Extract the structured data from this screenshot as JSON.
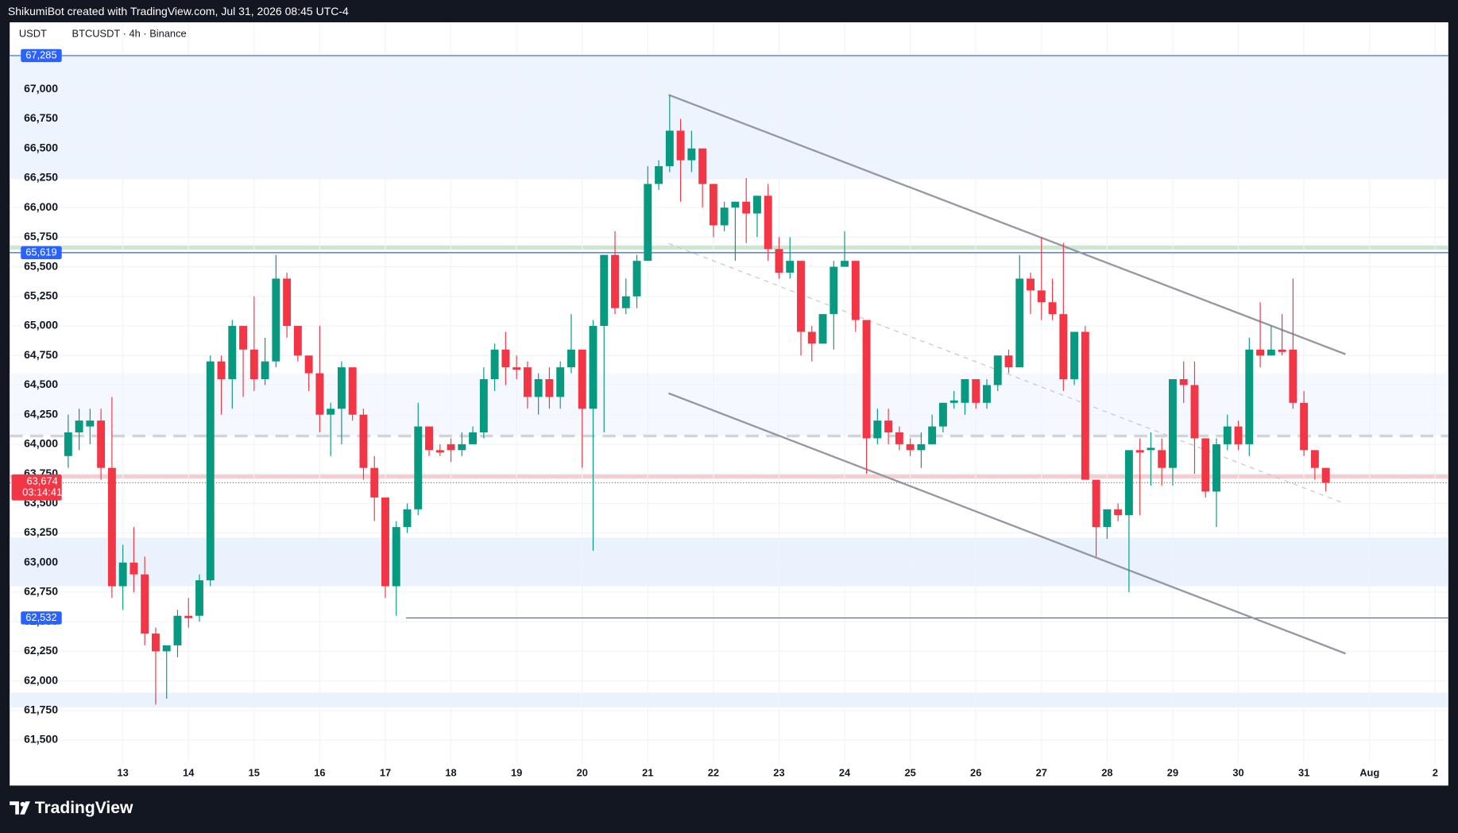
{
  "header": "ShikumiBot created with TradingView.com, Jul 31, 2026 08:45 UTC-4",
  "brand": "TradingView",
  "chart_data": {
    "type": "candlestick",
    "title": "BTCUSDT · 4h · Binance",
    "currency": "USDT",
    "up_color": "#089981",
    "down_color": "#f23645",
    "grid": true,
    "open": [
      63900,
      64100,
      64150,
      64200,
      63800,
      62800,
      63000,
      62900,
      62400,
      62250,
      62300,
      62550,
      62550,
      62850,
      64700,
      64550,
      65000,
      64800,
      64550,
      64700,
      65400,
      65000,
      64750,
      64600,
      64250,
      64300,
      64650,
      64250,
      63800,
      63550,
      62800,
      63300,
      63450,
      64150,
      63950,
      64000,
      63950,
      64000,
      64100,
      64550,
      64800,
      64650,
      64650,
      64400,
      64550,
      64400,
      64650,
      64800,
      64300,
      65000,
      65600,
      65150,
      65250,
      65550,
      66200,
      66350,
      66650,
      66400,
      66500,
      66200,
      65850,
      66000,
      66050,
      65950,
      66100,
      65650,
      65450,
      65550,
      64950,
      64850,
      65100,
      65500,
      65550,
      65050,
      64050,
      64200,
      64100,
      64000,
      63950,
      64000,
      64150,
      64350,
      64350,
      64550,
      64350,
      64500,
      64750,
      64650,
      65400,
      65300,
      65200,
      65100,
      64550,
      64950,
      63700,
      63300,
      63450,
      63400,
      63950,
      63950,
      63950,
      63800,
      64550,
      64500,
      64050,
      63600,
      64000,
      64150,
      64000,
      64800,
      64750,
      64800,
      64800,
      64350,
      63950,
      63800
    ],
    "high": [
      64250,
      64300,
      64300,
      64300,
      64400,
      63150,
      63300,
      63050,
      62450,
      62300,
      62600,
      62700,
      62900,
      64750,
      64750,
      65050,
      65000,
      65250,
      64900,
      65600,
      65450,
      65000,
      64750,
      65000,
      64350,
      64700,
      64650,
      64300,
      63900,
      63550,
      63350,
      63500,
      64350,
      64150,
      64000,
      64050,
      64100,
      64150,
      64650,
      64850,
      64950,
      64750,
      64700,
      64600,
      64650,
      64700,
      65100,
      64800,
      65050,
      65600,
      65800,
      65400,
      65600,
      66350,
      66400,
      66950,
      66750,
      66650,
      66500,
      66200,
      66050,
      66050,
      66250,
      66100,
      66200,
      65750,
      65750,
      65550,
      65000,
      65100,
      65550,
      65800,
      65550,
      65050,
      64300,
      64300,
      64150,
      64050,
      64100,
      64250,
      64350,
      64450,
      64550,
      64550,
      64550,
      64750,
      64800,
      65600,
      65450,
      65750,
      65400,
      65700,
      64950,
      65000,
      63700,
      63450,
      63500,
      63950,
      64050,
      64100,
      64050,
      64550,
      64700,
      64700,
      64050,
      64050,
      64250,
      64200,
      64900,
      65200,
      65000,
      65100,
      65400,
      64450,
      63950,
      63800
    ],
    "low": [
      63800,
      63950,
      64000,
      63700,
      62700,
      62600,
      62750,
      62300,
      61800,
      61850,
      62200,
      62450,
      62500,
      62800,
      64250,
      64300,
      64400,
      64450,
      64500,
      64650,
      64900,
      64700,
      64450,
      64100,
      63900,
      64000,
      64200,
      63700,
      63350,
      62700,
      62550,
      63250,
      63400,
      63900,
      63900,
      63850,
      63900,
      64000,
      64050,
      64450,
      64500,
      64550,
      64300,
      64250,
      64300,
      64300,
      64600,
      63800,
      63100,
      64100,
      65100,
      65100,
      65150,
      65550,
      66150,
      66300,
      66050,
      66300,
      66000,
      65750,
      65800,
      65550,
      65700,
      65750,
      65550,
      65400,
      65400,
      64750,
      64700,
      64850,
      64800,
      65500,
      64950,
      63750,
      64000,
      64000,
      63950,
      63900,
      63800,
      64000,
      64100,
      64300,
      64250,
      64300,
      64300,
      64450,
      64600,
      64650,
      65100,
      65050,
      65050,
      64450,
      64500,
      63700,
      63050,
      63200,
      63350,
      62750,
      63400,
      63650,
      63650,
      63650,
      64350,
      63750,
      63550,
      63300,
      63950,
      63950,
      63900,
      64650,
      64750,
      64750,
      64300,
      63900,
      63700,
      63600
    ],
    "close": [
      64100,
      64200,
      64200,
      63800,
      62800,
      63000,
      62900,
      62400,
      62250,
      62300,
      62550,
      62530,
      62850,
      64700,
      64550,
      65000,
      64800,
      64550,
      64700,
      65400,
      65000,
      64750,
      64600,
      64250,
      64300,
      64650,
      64250,
      63800,
      63550,
      62800,
      63300,
      63450,
      64150,
      63950,
      63930,
      63950,
      64000,
      64100,
      64550,
      64800,
      64650,
      64630,
      64400,
      64550,
      64400,
      64650,
      64800,
      64300,
      65000,
      65600,
      65150,
      65250,
      65550,
      66200,
      66350,
      66650,
      66400,
      66500,
      66200,
      65850,
      66000,
      66050,
      65950,
      66100,
      65650,
      65450,
      65550,
      64950,
      64850,
      65100,
      65500,
      65550,
      65050,
      64050,
      64200,
      64100,
      64000,
      63950,
      64000,
      64150,
      64350,
      64370,
      64550,
      64350,
      64500,
      64750,
      64650,
      65400,
      65300,
      65200,
      65100,
      64550,
      64950,
      63700,
      63300,
      63450,
      63400,
      63950,
      63930,
      63970,
      63800,
      64550,
      64500,
      64050,
      63600,
      64000,
      64150,
      64000,
      64800,
      64750,
      64800,
      64780,
      64350,
      63950,
      63800,
      63674
    ],
    "xlim": [
      -5.35,
      126.2
    ],
    "xticks": [
      {
        "value": 5,
        "label": "13"
      },
      {
        "value": 11,
        "label": "14"
      },
      {
        "value": 17,
        "label": "15"
      },
      {
        "value": 23,
        "label": "16"
      },
      {
        "value": 29,
        "label": "17"
      },
      {
        "value": 35,
        "label": "18"
      },
      {
        "value": 41,
        "label": "19"
      },
      {
        "value": 47,
        "label": "20"
      },
      {
        "value": 53,
        "label": "21"
      },
      {
        "value": 59,
        "label": "22"
      },
      {
        "value": 65,
        "label": "23"
      },
      {
        "value": 71,
        "label": "24"
      },
      {
        "value": 77,
        "label": "25"
      },
      {
        "value": 83,
        "label": "26"
      },
      {
        "value": 89,
        "label": "27"
      },
      {
        "value": 95,
        "label": "28"
      },
      {
        "value": 101,
        "label": "29"
      },
      {
        "value": 107,
        "label": "30"
      },
      {
        "value": 113,
        "label": "31"
      },
      {
        "value": 119,
        "label": "Aug"
      },
      {
        "value": 125,
        "label": "2"
      }
    ],
    "ylim": [
      61115,
      67566
    ],
    "yticks": [
      {
        "value": 61500,
        "label": "61,500"
      },
      {
        "value": 61750,
        "label": "61,750"
      },
      {
        "value": 62000,
        "label": "62,000"
      },
      {
        "value": 62250,
        "label": "62,250"
      },
      {
        "value": 62500,
        "label": "62,500"
      },
      {
        "value": 62750,
        "label": "62,750"
      },
      {
        "value": 63000,
        "label": "63,000"
      },
      {
        "value": 63250,
        "label": "63,250"
      },
      {
        "value": 63500,
        "label": "63,500"
      },
      {
        "value": 63750,
        "label": "63,750"
      },
      {
        "value": 64000,
        "label": "64,000"
      },
      {
        "value": 64250,
        "label": "64,250"
      },
      {
        "value": 64500,
        "label": "64,500"
      },
      {
        "value": 64750,
        "label": "64,750"
      },
      {
        "value": 65000,
        "label": "65,000"
      },
      {
        "value": 65250,
        "label": "65,250"
      },
      {
        "value": 65500,
        "label": "65,500"
      },
      {
        "value": 65750,
        "label": "65,750"
      },
      {
        "value": 66000,
        "label": "66,000"
      },
      {
        "value": 66250,
        "label": "66,250"
      },
      {
        "value": 66500,
        "label": "66,500"
      },
      {
        "value": 66750,
        "label": "66,750"
      },
      {
        "value": 67000,
        "label": "67,000"
      }
    ],
    "zones": [
      {
        "from": 67285,
        "to": 66240,
        "color": "#eef4fd"
      },
      {
        "from": 64600,
        "to": 64070,
        "color": "#f5f8fe"
      },
      {
        "from": 63210,
        "to": 62800,
        "color": "#eaf2fd"
      },
      {
        "from": 61900,
        "to": 61775,
        "color": "#eaf2fd"
      },
      {
        "from": 65680,
        "to": 65645,
        "color": "#c9e8cf"
      },
      {
        "from": 63745,
        "to": 63710,
        "color": "#f9ccd0"
      }
    ],
    "guides": [
      {
        "value": 64070,
        "color": "#d1d4dc"
      }
    ],
    "levels": [
      {
        "value": 67285,
        "label": "67,285",
        "color": "#2962ff",
        "start": -5.35
      },
      {
        "value": 65619,
        "label": "65,619",
        "color": "#2962ff",
        "start": -5.35
      },
      {
        "value": 62532,
        "label": "62,532",
        "color": "#2962ff",
        "start": 30.9
      }
    ],
    "last_price": {
      "value": 63674,
      "label": "63,674",
      "countdown": "03:14:41",
      "color": "#f23645"
    },
    "trendlines": [
      {
        "x": [
          54.9,
          116.8
        ],
        "y": [
          66953,
          64761
        ],
        "color": "#9598a1",
        "dashed": false
      },
      {
        "x": [
          54.9,
          116.8
        ],
        "y": [
          64431,
          62231
        ],
        "color": "#9598a1",
        "dashed": false
      },
      {
        "x": [
          54.9,
          116.8
        ],
        "y": [
          65696,
          63496
        ],
        "color": "#c3c5cb",
        "dashed": true
      }
    ]
  }
}
